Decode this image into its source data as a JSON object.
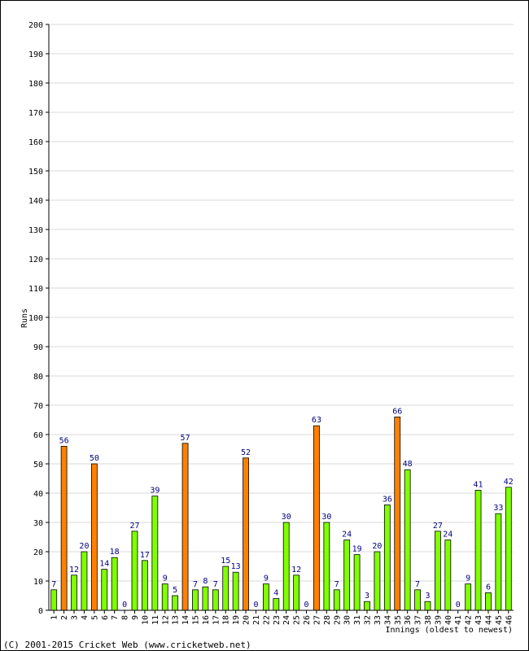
{
  "chart_data": {
    "type": "bar",
    "title": "",
    "xlabel": "Innings (oldest to newest)",
    "ylabel": "Runs",
    "ylim": [
      0,
      200
    ],
    "ytick_step": 10,
    "grid": true,
    "categories": [
      "1",
      "2",
      "3",
      "4",
      "5",
      "6",
      "7",
      "8",
      "9",
      "10",
      "11",
      "12",
      "13",
      "14",
      "15",
      "16",
      "17",
      "18",
      "19",
      "20",
      "21",
      "22",
      "23",
      "24",
      "25",
      "26",
      "27",
      "28",
      "29",
      "30",
      "31",
      "32",
      "33",
      "34",
      "35",
      "36",
      "37",
      "38",
      "39",
      "40",
      "41",
      "42",
      "43",
      "44",
      "45",
      "46"
    ],
    "values": [
      7,
      56,
      12,
      20,
      50,
      14,
      18,
      0,
      27,
      17,
      39,
      9,
      5,
      57,
      7,
      8,
      7,
      15,
      13,
      52,
      0,
      9,
      4,
      30,
      12,
      0,
      63,
      30,
      7,
      24,
      19,
      3,
      20,
      36,
      66,
      48,
      7,
      3,
      27,
      24,
      0,
      9,
      41,
      6,
      33,
      42
    ],
    "colors": {
      "under_50": "#80ff00",
      "fifty_plus": "#ff8000",
      "bar_edge": "#000000",
      "data_label": "#000080",
      "grid": "#d8d8d8"
    }
  },
  "footer": {
    "copyright": "(C) 2001-2015 Cricket Web (www.cricketweb.net)"
  }
}
